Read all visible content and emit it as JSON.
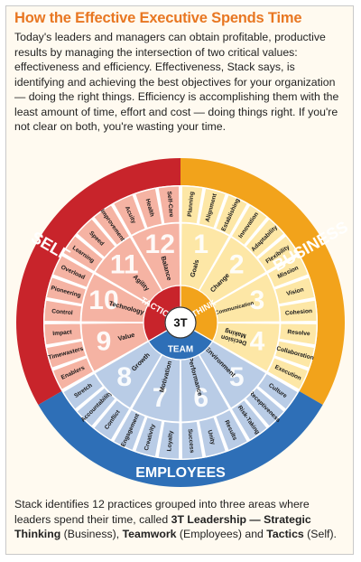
{
  "title": "How the Effective Executive Spends Time",
  "intro": "Today's leaders and managers can obtain profitable, productive results by managing the intersection of two critical values: effectiveness and efficiency. Effectiveness, Stack says, is identifying and achieving the best objectives for your organization — doing the right things. Efficiency is accomplishing them with the least amount of time, effort and cost — doing things right. If you're not clear on both, you're wasting your time.",
  "wheel": {
    "center": "3T",
    "inner_labels": [
      "TACTICS",
      "THINK",
      "TEAM"
    ],
    "outer_labels": [
      "SELF",
      "BUSINESS",
      "EMPLOYEES"
    ],
    "colors": {
      "self": "#c8242b",
      "business": "#f2a31b",
      "employees": "#2e6fb7",
      "self_light": "#f5b3a3",
      "business_light": "#fde7a6",
      "employees_light": "#b9cce6"
    },
    "practices": [
      {
        "number": "1",
        "label": "Goals"
      },
      {
        "number": "2",
        "label": "Change"
      },
      {
        "number": "3",
        "label": "Communication"
      },
      {
        "number": "4",
        "label": "Decision Making"
      },
      {
        "number": "5",
        "label": "Environment"
      },
      {
        "number": "6",
        "label": "Performance"
      },
      {
        "number": "7",
        "label": "Motivation"
      },
      {
        "number": "8",
        "label": "Growth"
      },
      {
        "number": "9",
        "label": "Value"
      },
      {
        "number": "10",
        "label": "Technology"
      },
      {
        "number": "11",
        "label": "Agility"
      },
      {
        "number": "12",
        "label": "Balance"
      }
    ],
    "outer_items": [
      "Planning",
      "Alignment",
      "Establishing",
      "Innovation",
      "Adaptability",
      "Flexibility",
      "Mission",
      "Vision",
      "Cohesion",
      "Resolve",
      "Collaboration",
      "Execution",
      "Culture",
      "Receptiveness",
      "Risk-Taking",
      "Results",
      "Unity",
      "Success",
      "Loyalty",
      "Creativity",
      "Engagement",
      "Conflict",
      "Accountability",
      "Stretch",
      "Enablers",
      "Timewasters",
      "Impact",
      "Control",
      "Pioneering",
      "Overload",
      "Learning",
      "Speed",
      "Improvement",
      "Acuity",
      "Health",
      "Self-Care"
    ]
  },
  "outro": {
    "part1": "Stack identifies 12 practices grouped into three areas where leaders spend their time, called ",
    "b1": "3T Leadership — Strategic Thinking",
    "part2": " (Business), ",
    "b2": "Teamwork",
    "part3": " (Employees) and ",
    "b3": "Tactics",
    "part4": " (Self)."
  }
}
